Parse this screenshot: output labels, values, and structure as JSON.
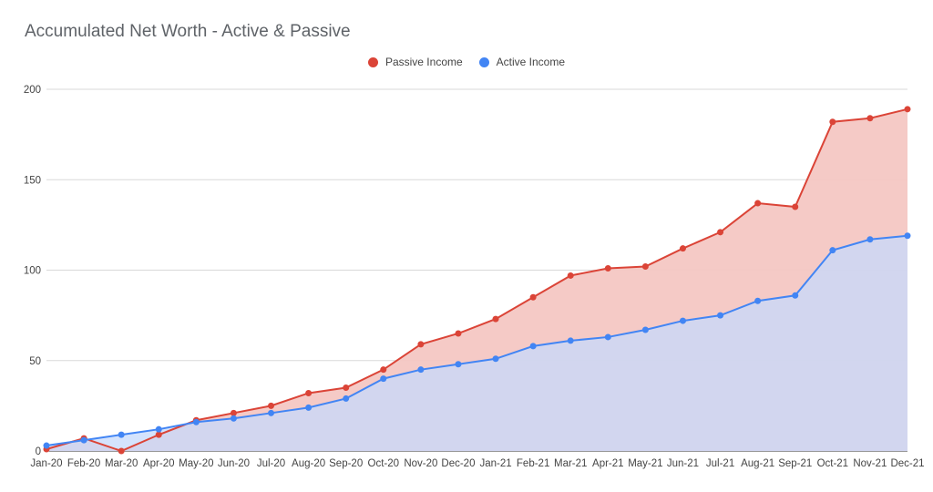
{
  "chart_data": {
    "type": "area",
    "title": "Accumulated Net Worth - Active & Passive",
    "xlabel": "",
    "ylabel": "",
    "ylim": [
      0,
      200
    ],
    "yticks": [
      0,
      50,
      100,
      150,
      200
    ],
    "grid": true,
    "legend_position": "top",
    "categories": [
      "Jan-20",
      "Feb-20",
      "Mar-20",
      "Apr-20",
      "May-20",
      "Jun-20",
      "Jul-20",
      "Aug-20",
      "Sep-20",
      "Oct-20",
      "Nov-20",
      "Dec-20",
      "Jan-21",
      "Feb-21",
      "Mar-21",
      "Apr-21",
      "May-21",
      "Jun-21",
      "Jul-21",
      "Aug-21",
      "Sep-21",
      "Oct-21",
      "Nov-21",
      "Dec-21"
    ],
    "series": [
      {
        "name": "Passive Income",
        "color": "#db4437",
        "fill": "#f4c7c3",
        "values": [
          1,
          7,
          0,
          9,
          17,
          21,
          25,
          32,
          35,
          45,
          59,
          65,
          73,
          85,
          97,
          101,
          102,
          112,
          121,
          137,
          135,
          182,
          184,
          189
        ]
      },
      {
        "name": "Active Income",
        "color": "#4285f4",
        "fill": "#c6dafc",
        "values": [
          3,
          6,
          9,
          12,
          16,
          18,
          21,
          24,
          29,
          40,
          45,
          48,
          51,
          58,
          61,
          63,
          67,
          72,
          75,
          83,
          86,
          111,
          117,
          119
        ]
      }
    ]
  }
}
